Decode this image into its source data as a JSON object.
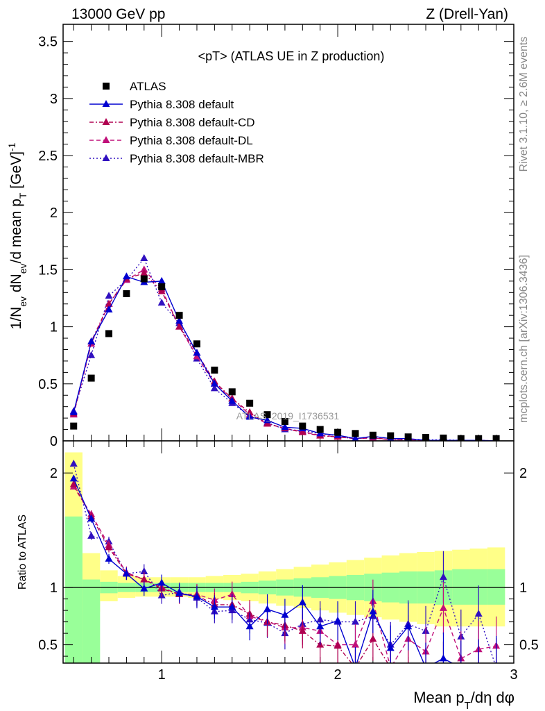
{
  "header": {
    "left": "13000 GeV pp",
    "right": "Z (Drell-Yan)"
  },
  "side": {
    "rivet": "Rivet 3.1.10, ≥ 2.6M events",
    "mcplots": "mcplots.cern.ch [arXiv:1306.3436]"
  },
  "watermark": "ATLAS_2019_I1736531",
  "colors": {
    "atlas": "#000000",
    "default": "#0000d0",
    "cd": "#b00050",
    "dl": "#c0107a",
    "mbr": "#3010c0",
    "band_inner": "#99ff99",
    "band_outer": "#ffff88"
  },
  "chart_data": [
    {
      "type": "line",
      "title": "<pT> (ATLAS UE in Z production)",
      "ylabel": "1/N_ev dN_ev/d mean p_T [GeV]^-1",
      "xlabel": "Mean p_T/dη dφ",
      "xlim": [
        0.44,
        3.0
      ],
      "ylim": [
        0,
        3.65
      ],
      "yticks": [
        "0",
        "0.5",
        "1",
        "1.5",
        "2",
        "2.5",
        "3",
        "3.5"
      ],
      "x": [
        0.5,
        0.6,
        0.7,
        0.8,
        0.9,
        1.0,
        1.1,
        1.2,
        1.3,
        1.4,
        1.5,
        1.6,
        1.7,
        1.8,
        1.9,
        2.0,
        2.1,
        2.2,
        2.3,
        2.4,
        2.5,
        2.6,
        2.7,
        2.8,
        2.9
      ],
      "series": [
        {
          "name": "ATLAS",
          "style": "markers",
          "values": [
            0.13,
            0.55,
            0.94,
            1.29,
            1.42,
            1.35,
            1.1,
            0.85,
            0.62,
            0.43,
            0.33,
            0.23,
            0.17,
            0.13,
            0.1,
            0.075,
            0.065,
            0.05,
            0.045,
            0.035,
            0.03,
            0.025,
            0.02,
            0.02,
            0.02
          ]
        },
        {
          "name": "Pythia 8.308 default",
          "style": "solid",
          "values": [
            0.25,
            0.87,
            1.15,
            1.44,
            1.39,
            1.4,
            1.05,
            0.77,
            0.5,
            0.35,
            0.21,
            0.18,
            0.12,
            0.11,
            0.065,
            0.05,
            0.02,
            0.04,
            0.02,
            0.02,
            0.005,
            0.005,
            0.005,
            0.005,
            0.0
          ]
        },
        {
          "name": "Pythia 8.308 default-CD",
          "style": "dashdot",
          "values": [
            0.24,
            0.87,
            1.2,
            1.42,
            1.47,
            1.31,
            1.0,
            0.77,
            0.52,
            0.37,
            0.25,
            0.15,
            0.11,
            0.075,
            0.045,
            0.035,
            0.02,
            0.03,
            0.01,
            0.01,
            0.005,
            0.005,
            0.005,
            0.005,
            0.0
          ]
        },
        {
          "name": "Pythia 8.308 default-DL",
          "style": "dashed",
          "values": [
            0.23,
            0.85,
            1.2,
            1.41,
            1.5,
            1.33,
            1.0,
            0.74,
            0.5,
            0.37,
            0.23,
            0.15,
            0.11,
            0.08,
            0.05,
            0.035,
            0.02,
            0.025,
            0.01,
            0.01,
            0.005,
            0.005,
            0.005,
            0.005,
            0.0
          ]
        },
        {
          "name": "Pythia 8.308 default-MBR",
          "style": "dotted",
          "values": [
            0.26,
            0.75,
            1.27,
            1.41,
            1.6,
            1.21,
            1.03,
            0.72,
            0.46,
            0.33,
            0.22,
            0.16,
            0.1,
            0.09,
            0.065,
            0.045,
            0.02,
            0.04,
            0.02,
            0.015,
            0.01,
            0.01,
            0.005,
            0.005,
            0.0
          ]
        }
      ]
    },
    {
      "type": "line",
      "ylabel": "Ratio to ATLAS",
      "xlabel": "Mean p_T/dη dφ",
      "xlim": [
        0.44,
        3.0
      ],
      "ylim": [
        0.34,
        2.28
      ],
      "xticks": [
        "1",
        "2",
        "3"
      ],
      "yticks": [
        "0.5",
        "1",
        "2"
      ],
      "x": [
        0.5,
        0.6,
        0.7,
        0.8,
        0.9,
        1.0,
        1.1,
        1.2,
        1.3,
        1.4,
        1.5,
        1.6,
        1.7,
        1.8,
        1.9,
        2.0,
        2.1,
        2.2,
        2.3,
        2.4,
        2.5,
        2.6,
        2.7,
        2.8,
        2.9
      ],
      "band_inner": {
        "lo": [
          0.34,
          0.34,
          0.95,
          0.96,
          0.96,
          0.96,
          0.96,
          0.96,
          0.96,
          0.96,
          0.95,
          0.94,
          0.93,
          0.92,
          0.91,
          0.9,
          0.89,
          0.88,
          0.87,
          0.86,
          0.86,
          0.85,
          0.85,
          0.85,
          0.85
        ],
        "hi": [
          1.62,
          1.07,
          1.05,
          1.04,
          1.04,
          1.04,
          1.04,
          1.04,
          1.04,
          1.04,
          1.05,
          1.06,
          1.07,
          1.08,
          1.09,
          1.1,
          1.11,
          1.12,
          1.13,
          1.14,
          1.14,
          1.15,
          1.16,
          1.16,
          1.16
        ]
      },
      "band_outer": {
        "lo": [
          0.34,
          0.79,
          0.88,
          0.91,
          0.92,
          0.92,
          0.92,
          0.91,
          0.9,
          0.89,
          0.88,
          0.86,
          0.84,
          0.82,
          0.8,
          0.78,
          0.76,
          0.74,
          0.72,
          0.7,
          0.68,
          0.66,
          0.66,
          0.66,
          0.66
        ],
        "hi": [
          2.18,
          1.3,
          1.15,
          1.1,
          1.09,
          1.09,
          1.09,
          1.09,
          1.1,
          1.11,
          1.12,
          1.14,
          1.16,
          1.18,
          1.2,
          1.22,
          1.24,
          1.26,
          1.28,
          1.3,
          1.31,
          1.32,
          1.33,
          1.34,
          1.35
        ]
      },
      "series": [
        {
          "name": "Pythia 8.308 default",
          "values": [
            1.95,
            1.6,
            1.25,
            1.12,
            0.99,
            1.04,
            0.95,
            0.92,
            0.83,
            0.83,
            0.66,
            0.81,
            0.76,
            0.87,
            0.66,
            0.71,
            0.3,
            0.79,
            0.47,
            0.66,
            0.3,
            0.38,
            0.3,
            0.3,
            0.32
          ]
        },
        {
          "name": "Pythia 8.308 default-CD",
          "values": [
            1.9,
            1.62,
            1.35,
            1.12,
            1.07,
            0.99,
            0.94,
            0.93,
            0.85,
            0.85,
            0.77,
            0.7,
            0.67,
            0.62,
            0.5,
            0.49,
            0.3,
            0.55,
            0.3,
            0.3,
            0.3,
            0.3,
            0.3,
            0.3,
            0.3
          ]
        },
        {
          "name": "Pythia 8.308 default-DL",
          "values": [
            1.88,
            1.64,
            1.37,
            1.13,
            1.07,
            1.0,
            0.94,
            0.94,
            0.89,
            0.94,
            0.75,
            0.7,
            0.65,
            0.65,
            0.62,
            0.5,
            0.5,
            0.88,
            0.3,
            0.55,
            0.44,
            0.82,
            0.38,
            0.46,
            0.49
          ]
        },
        {
          "name": "Pythia 8.308 default-MBR",
          "values": [
            2.08,
            1.45,
            1.4,
            1.12,
            1.14,
            0.93,
            0.96,
            0.91,
            0.79,
            0.8,
            0.72,
            0.69,
            0.6,
            0.68,
            0.72,
            0.7,
            0.7,
            0.75,
            0.5,
            0.68,
            0.62,
            1.09,
            0.57,
            0.77,
            0.3
          ]
        }
      ]
    }
  ],
  "legend": [
    {
      "label": "ATLAS"
    },
    {
      "label": "Pythia 8.308 default"
    },
    {
      "label": "Pythia 8.308 default-CD"
    },
    {
      "label": "Pythia 8.308 default-DL"
    },
    {
      "label": "Pythia 8.308 default-MBR"
    }
  ]
}
